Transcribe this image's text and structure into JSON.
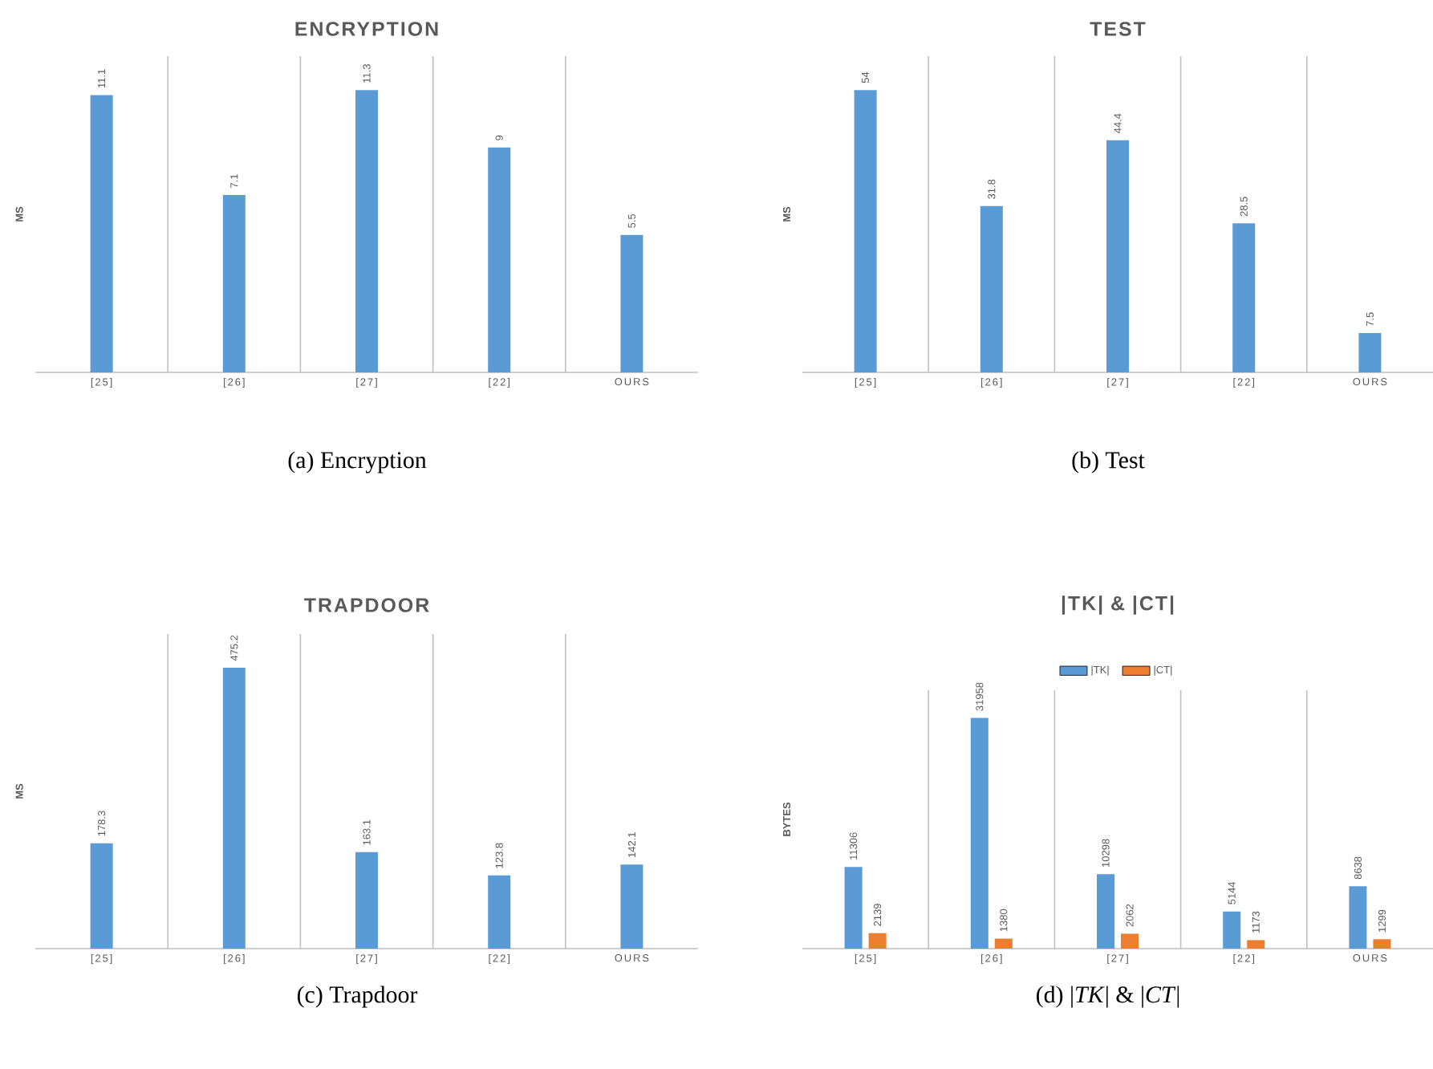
{
  "chart_data": [
    {
      "type": "bar",
      "title": "ENCRYPTION",
      "ylabel": "MS",
      "categories": [
        "[25]",
        "[26]",
        "[27]",
        "[22]",
        "OURS"
      ],
      "values": [
        11.1,
        7.1,
        11.3,
        9,
        5.5
      ],
      "color": "#5b9bd5",
      "data_labels": true,
      "grid": "x",
      "tick_labels": "x",
      "annotations": [
        "(a) Encryption"
      ]
    },
    {
      "type": "bar",
      "title": "TEST",
      "ylabel": "MS",
      "categories": [
        "[25]",
        "[26]",
        "[27]",
        "[22]",
        "OURS"
      ],
      "values": [
        54,
        31.8,
        44.4,
        28.5,
        7.5
      ],
      "color": "#5b9bd5",
      "data_labels": true,
      "grid": "x",
      "tick_labels": "x",
      "annotations": [
        "(b) Test"
      ]
    },
    {
      "type": "bar",
      "title": "TRAPDOOR",
      "ylabel": "MS",
      "categories": [
        "[25]",
        "[26]",
        "[27]",
        "[22]",
        "OURS"
      ],
      "values": [
        178.3,
        475.2,
        163.1,
        123.8,
        142.1
      ],
      "color": "#5b9bd5",
      "data_labels": true,
      "grid": "x",
      "tick_labels": "x",
      "annotations": [
        "(c) Trapdoor"
      ]
    },
    {
      "type": "bar",
      "title": "|TK| & |CT|",
      "ylabel": "BYTES",
      "categories": [
        "[25]",
        "[26]",
        "[27]",
        "[22]",
        "OURS"
      ],
      "series": [
        {
          "name": "|TK|",
          "color": "#5b9bd5",
          "values": [
            11306,
            31958,
            10298,
            5144,
            8638
          ]
        },
        {
          "name": "|CT|",
          "color": "#ed7d31",
          "values": [
            2139,
            1380,
            2062,
            1173,
            1299
          ]
        }
      ],
      "legend": "top",
      "data_labels": true,
      "grid": "x",
      "tick_labels": "x",
      "annotations": [
        "(d) |*TK*| & |*CT*|"
      ]
    }
  ]
}
